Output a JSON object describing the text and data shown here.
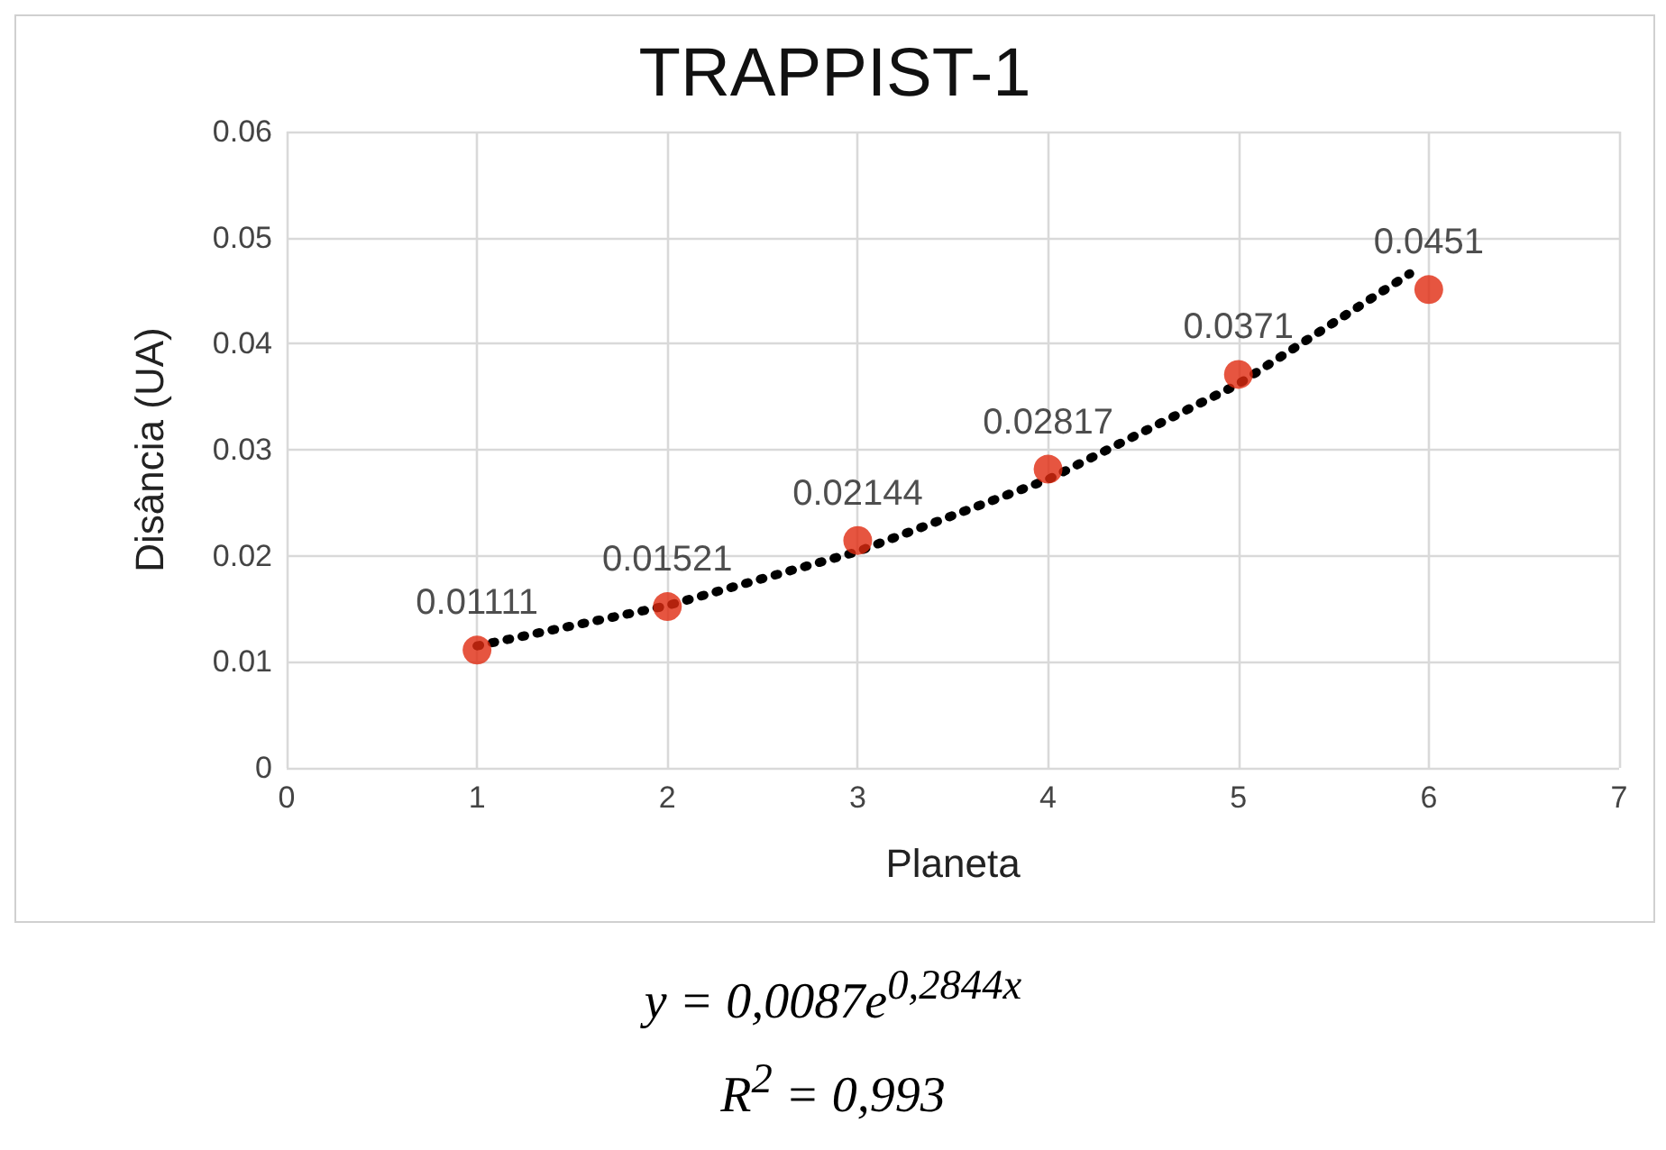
{
  "chart_data": {
    "type": "scatter",
    "title": "TRAPPIST-1",
    "xlabel": "Planeta",
    "ylabel": "Disância (UA)",
    "x": [
      1,
      2,
      3,
      4,
      5,
      6
    ],
    "series": [
      {
        "color": "#e02a10",
        "marker": "circle",
        "data_labels": true,
        "values": [
          0.01111,
          0.01521,
          0.02144,
          0.02817,
          0.0371,
          0.0451
        ]
      },
      {
        "type": "line",
        "color": "#000000",
        "line_style": "dotted",
        "marker": "none",
        "x": [
          1,
          2,
          3,
          4,
          5,
          5.9
        ],
        "values": [
          0.0115,
          0.0153,
          0.0204,
          0.0272,
          0.0362,
          0.0466
        ]
      }
    ],
    "xlim": [
      0,
      7
    ],
    "xticks": [
      0,
      1,
      2,
      3,
      4,
      5,
      6,
      7
    ],
    "ylim": [
      0,
      0.06
    ],
    "yticks": [
      0,
      0.01,
      0.02,
      0.03,
      0.04,
      0.05,
      0.06
    ],
    "grid": true,
    "annotations": [
      "y = 0,0087e$^{0,2844x}$",
      "R$^{2}$ = 0,993"
    ]
  }
}
